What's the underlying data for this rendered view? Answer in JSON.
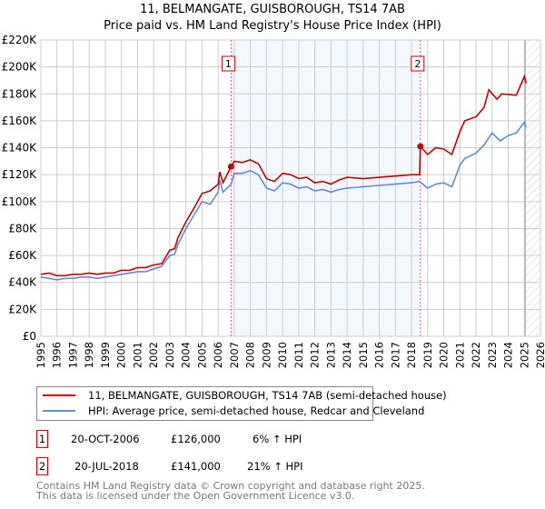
{
  "chart_data": {
    "type": "line",
    "title": "11, BELMANGATE, GUISBOROUGH, TS14 7AB",
    "subtitle": "Price paid vs. HM Land Registry's House Price Index (HPI)",
    "xlim": [
      1995,
      2026
    ],
    "ylim": [
      0,
      220000
    ],
    "x_ticks": [
      "1995",
      "1996",
      "1997",
      "1998",
      "1999",
      "2000",
      "2001",
      "2002",
      "2003",
      "2004",
      "2005",
      "2006",
      "2007",
      "2008",
      "2009",
      "2010",
      "2011",
      "2012",
      "2013",
      "2014",
      "2015",
      "2016",
      "2017",
      "2018",
      "2019",
      "2020",
      "2021",
      "2022",
      "2023",
      "2024",
      "2025",
      "2026"
    ],
    "y_ticks": [
      "£0",
      "£20K",
      "£40K",
      "£60K",
      "£80K",
      "£100K",
      "£120K",
      "£140K",
      "£160K",
      "£180K",
      "£200K",
      "£220K"
    ],
    "grid": true,
    "series": [
      {
        "name": "11, BELMANGATE, GUISBOROUGH, TS14 7AB (semi-detached house)",
        "color": "#cc0000",
        "x": [
          1995,
          1995.5,
          1996,
          1996.5,
          1997,
          1997.5,
          1998,
          1998.5,
          1999,
          1999.5,
          2000,
          2000.5,
          2001,
          2001.5,
          2002,
          2002.5,
          2003,
          2003.3,
          2003.5,
          2004,
          2004.5,
          2005,
          2005.5,
          2006,
          2006.1,
          2006.3,
          2006.8,
          2007,
          2007.5,
          2008,
          2008.5,
          2009,
          2009.5,
          2010,
          2010.5,
          2011,
          2011.5,
          2012,
          2012.5,
          2013,
          2013.5,
          2014,
          2015,
          2016,
          2017,
          2018,
          2018.5,
          2018.55,
          2019,
          2019.5,
          2020,
          2020.5,
          2021,
          2021.3,
          2022,
          2022.5,
          2022.8,
          2023.3,
          2023.6,
          2024.5,
          2025,
          2025.1
        ],
        "y": [
          46,
          47,
          45,
          45,
          46,
          46,
          47,
          46,
          47,
          47,
          49,
          49,
          51,
          51,
          53,
          54,
          64,
          65,
          73,
          85,
          95,
          106,
          108,
          113,
          122,
          114,
          126,
          130,
          129,
          131,
          128,
          117,
          115,
          121,
          120,
          117,
          118,
          114,
          115,
          113,
          116,
          118,
          117,
          118,
          119,
          120,
          120,
          141,
          135,
          140,
          139,
          135,
          152,
          160,
          163,
          170,
          183,
          176,
          180,
          179,
          193,
          188
        ]
      },
      {
        "name": "HPI: Average price, semi-detached house, Redcar and Cleveland",
        "color": "#5b8fd0",
        "x": [
          1995,
          1995.5,
          1996,
          1996.5,
          1997,
          1997.5,
          1998,
          1998.5,
          1999,
          1999.5,
          2000,
          2000.5,
          2001,
          2001.5,
          2002,
          2002.5,
          2003,
          2003.3,
          2003.5,
          2004,
          2004.5,
          2005,
          2005.5,
          2006,
          2006.1,
          2006.3,
          2006.8,
          2007,
          2007.5,
          2008,
          2008.5,
          2009,
          2009.5,
          2010,
          2010.5,
          2011,
          2011.5,
          2012,
          2012.5,
          2013,
          2013.5,
          2014,
          2015,
          2016,
          2017,
          2018,
          2018.5,
          2019,
          2019.5,
          2020,
          2020.5,
          2021,
          2021.3,
          2022,
          2022.5,
          2023,
          2023.5,
          2024,
          2024.5,
          2025,
          2025.1
        ],
        "y": [
          44,
          43,
          42,
          43,
          43,
          44,
          44,
          43,
          44,
          45,
          46,
          47,
          48,
          48,
          50,
          52,
          60,
          61,
          68,
          80,
          90,
          100,
          98,
          107,
          116,
          107,
          113,
          121,
          121,
          123,
          120,
          110,
          108,
          114,
          113,
          110,
          111,
          108,
          109,
          107,
          109,
          110,
          111,
          112,
          113,
          114,
          115,
          110,
          113,
          114,
          111,
          127,
          132,
          136,
          142,
          151,
          145,
          149,
          151,
          159,
          155
        ]
      }
    ],
    "sales": [
      {
        "label": "1",
        "x": 2006.8,
        "y": 126
      },
      {
        "label": "2",
        "x": 2018.55,
        "y": 141
      }
    ],
    "y_unit": "thousands GBP"
  },
  "legend": {
    "red": "11, BELMANGATE, GUISBOROUGH, TS14 7AB (semi-detached house)",
    "blue": "HPI: Average price, semi-detached house, Redcar and Cleveland"
  },
  "sales_table": [
    {
      "num": "1",
      "date": "20-OCT-2006",
      "price": "£126,000",
      "hpi": "6% ↑ HPI"
    },
    {
      "num": "2",
      "date": "20-JUL-2018",
      "price": "£141,000",
      "hpi": "21% ↑ HPI"
    }
  ],
  "footer": {
    "line1": "Contains HM Land Registry data © Crown copyright and database right 2025.",
    "line2": "This data is licensed under the Open Government Licence v3.0."
  }
}
